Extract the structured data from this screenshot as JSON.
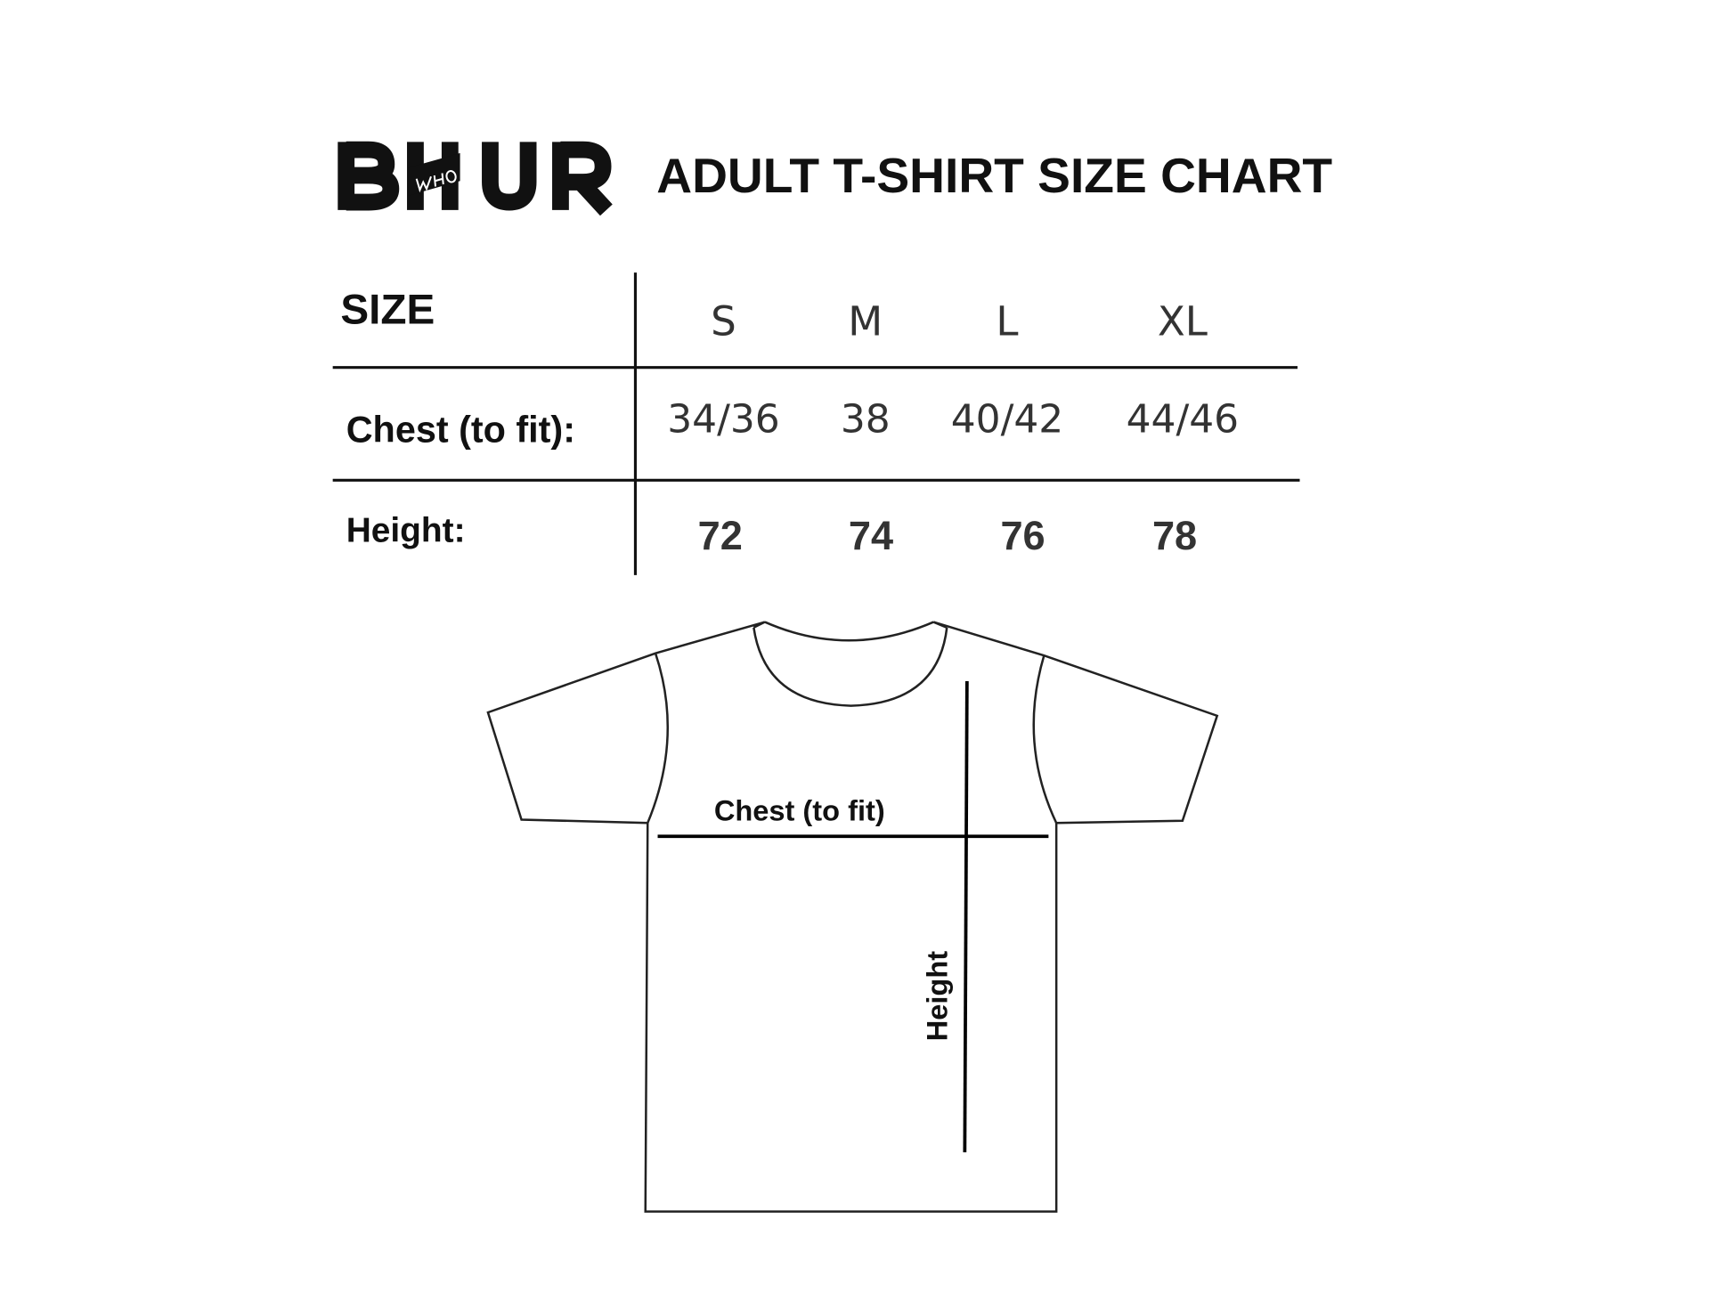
{
  "logo": {
    "text": "BHUR",
    "overlay": "WHO"
  },
  "title": "ADULT T-SHIRT SIZE CHART",
  "table": {
    "header_label": "SIZE",
    "sizes": [
      "S",
      "M",
      "L",
      "XL"
    ],
    "rows": [
      {
        "label": "Chest (to fit):",
        "values": [
          "34/36",
          "38",
          "40/42",
          "44/46"
        ]
      },
      {
        "label": "Height:",
        "values": [
          "72",
          "74",
          "76",
          "78"
        ]
      }
    ]
  },
  "diagram": {
    "chest_label": "Chest (to fit)",
    "height_label": "Height"
  }
}
